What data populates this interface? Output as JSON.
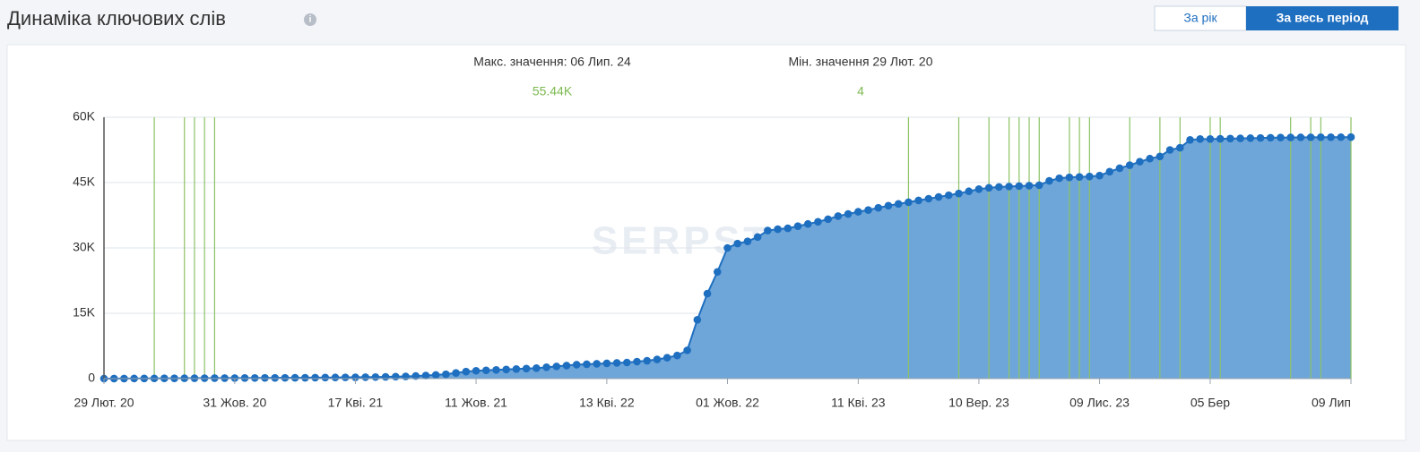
{
  "header": {
    "title": "Динаміка ключових слів",
    "buttons": [
      "За рік",
      "За весь період"
    ]
  },
  "chart_data": {
    "type": "area",
    "annotations": [
      {
        "text": "Макс. значення: 06 Лип. 24",
        "value_label": "55.44K"
      },
      {
        "text": "Мін. значення 29 Лют. 20",
        "value_label": "4"
      }
    ],
    "watermark": "SERPSTAT",
    "categories": [
      "29 Лют. 20",
      null,
      null,
      null,
      null,
      null,
      null,
      null,
      null,
      null,
      null,
      null,
      null,
      "31 Жов. 20",
      null,
      null,
      null,
      null,
      null,
      null,
      null,
      null,
      null,
      null,
      null,
      "17 Квi. 21",
      null,
      null,
      null,
      null,
      null,
      null,
      null,
      null,
      null,
      null,
      null,
      "11 Жов. 21",
      null,
      null,
      null,
      null,
      null,
      null,
      null,
      null,
      null,
      null,
      null,
      null,
      "13 Квi. 22",
      null,
      null,
      null,
      null,
      null,
      null,
      null,
      null,
      null,
      null,
      null,
      "01 Жов. 22",
      null,
      null,
      null,
      null,
      null,
      null,
      null,
      null,
      null,
      null,
      null,
      null,
      "11 Квi. 23",
      null,
      null,
      null,
      null,
      null,
      null,
      null,
      null,
      null,
      null,
      null,
      "10 Вер. 23",
      null,
      null,
      null,
      null,
      null,
      null,
      null,
      null,
      null,
      null,
      null,
      "09 Лис. 23",
      null,
      null,
      null,
      null,
      null,
      null,
      null,
      null,
      null,
      null,
      "05 Бер",
      null,
      null,
      null,
      null,
      null,
      null,
      null,
      null,
      null,
      null,
      null,
      null,
      null,
      "09 Лип"
    ],
    "values": [
      4,
      10,
      20,
      30,
      40,
      50,
      60,
      70,
      80,
      90,
      100,
      110,
      120,
      130,
      140,
      150,
      160,
      170,
      180,
      190,
      200,
      220,
      240,
      260,
      280,
      300,
      330,
      360,
      400,
      450,
      500,
      600,
      700,
      850,
      1000,
      1300,
      1600,
      1800,
      1900,
      2000,
      2100,
      2200,
      2300,
      2400,
      2600,
      2800,
      3000,
      3200,
      3300,
      3400,
      3500,
      3600,
      3700,
      3900,
      4100,
      4400,
      4800,
      5300,
      6500,
      13500,
      19500,
      24500,
      30000,
      31000,
      31500,
      32500,
      34000,
      34300,
      34500,
      35000,
      35500,
      36000,
      36600,
      37300,
      37800,
      38300,
      38700,
      39200,
      39700,
      40100,
      40500,
      40900,
      41300,
      41700,
      42100,
      42500,
      43000,
      43500,
      43800,
      44000,
      44100,
      44200,
      44300,
      44400,
      45400,
      46000,
      46200,
      46300,
      46400,
      46600,
      47500,
      48300,
      49000,
      49800,
      50500,
      51000,
      52500,
      53000,
      54800,
      55000,
      55000,
      55050,
      55100,
      55150,
      55200,
      55250,
      55300,
      55330,
      55360,
      55380,
      55400,
      55410,
      55420,
      55430,
      55440
    ],
    "event_indices": [
      5,
      8,
      9,
      10,
      11,
      80,
      85,
      88,
      90,
      91,
      92,
      93,
      96,
      97,
      98,
      102,
      105,
      107,
      110,
      111,
      118,
      120,
      121,
      124
    ],
    "color": "#1f6fc0",
    "fill_color": "#6fa6d9",
    "event_color": "#8cc265",
    "ylim": [
      0,
      60000
    ],
    "yticks": [
      0,
      {
        "value": 15000,
        "label": "15K"
      },
      {
        "value": 30000,
        "label": "30K"
      },
      {
        "value": 45000,
        "label": "45K"
      },
      {
        "value": 60000,
        "label": "60K"
      }
    ],
    "grid": true
  }
}
